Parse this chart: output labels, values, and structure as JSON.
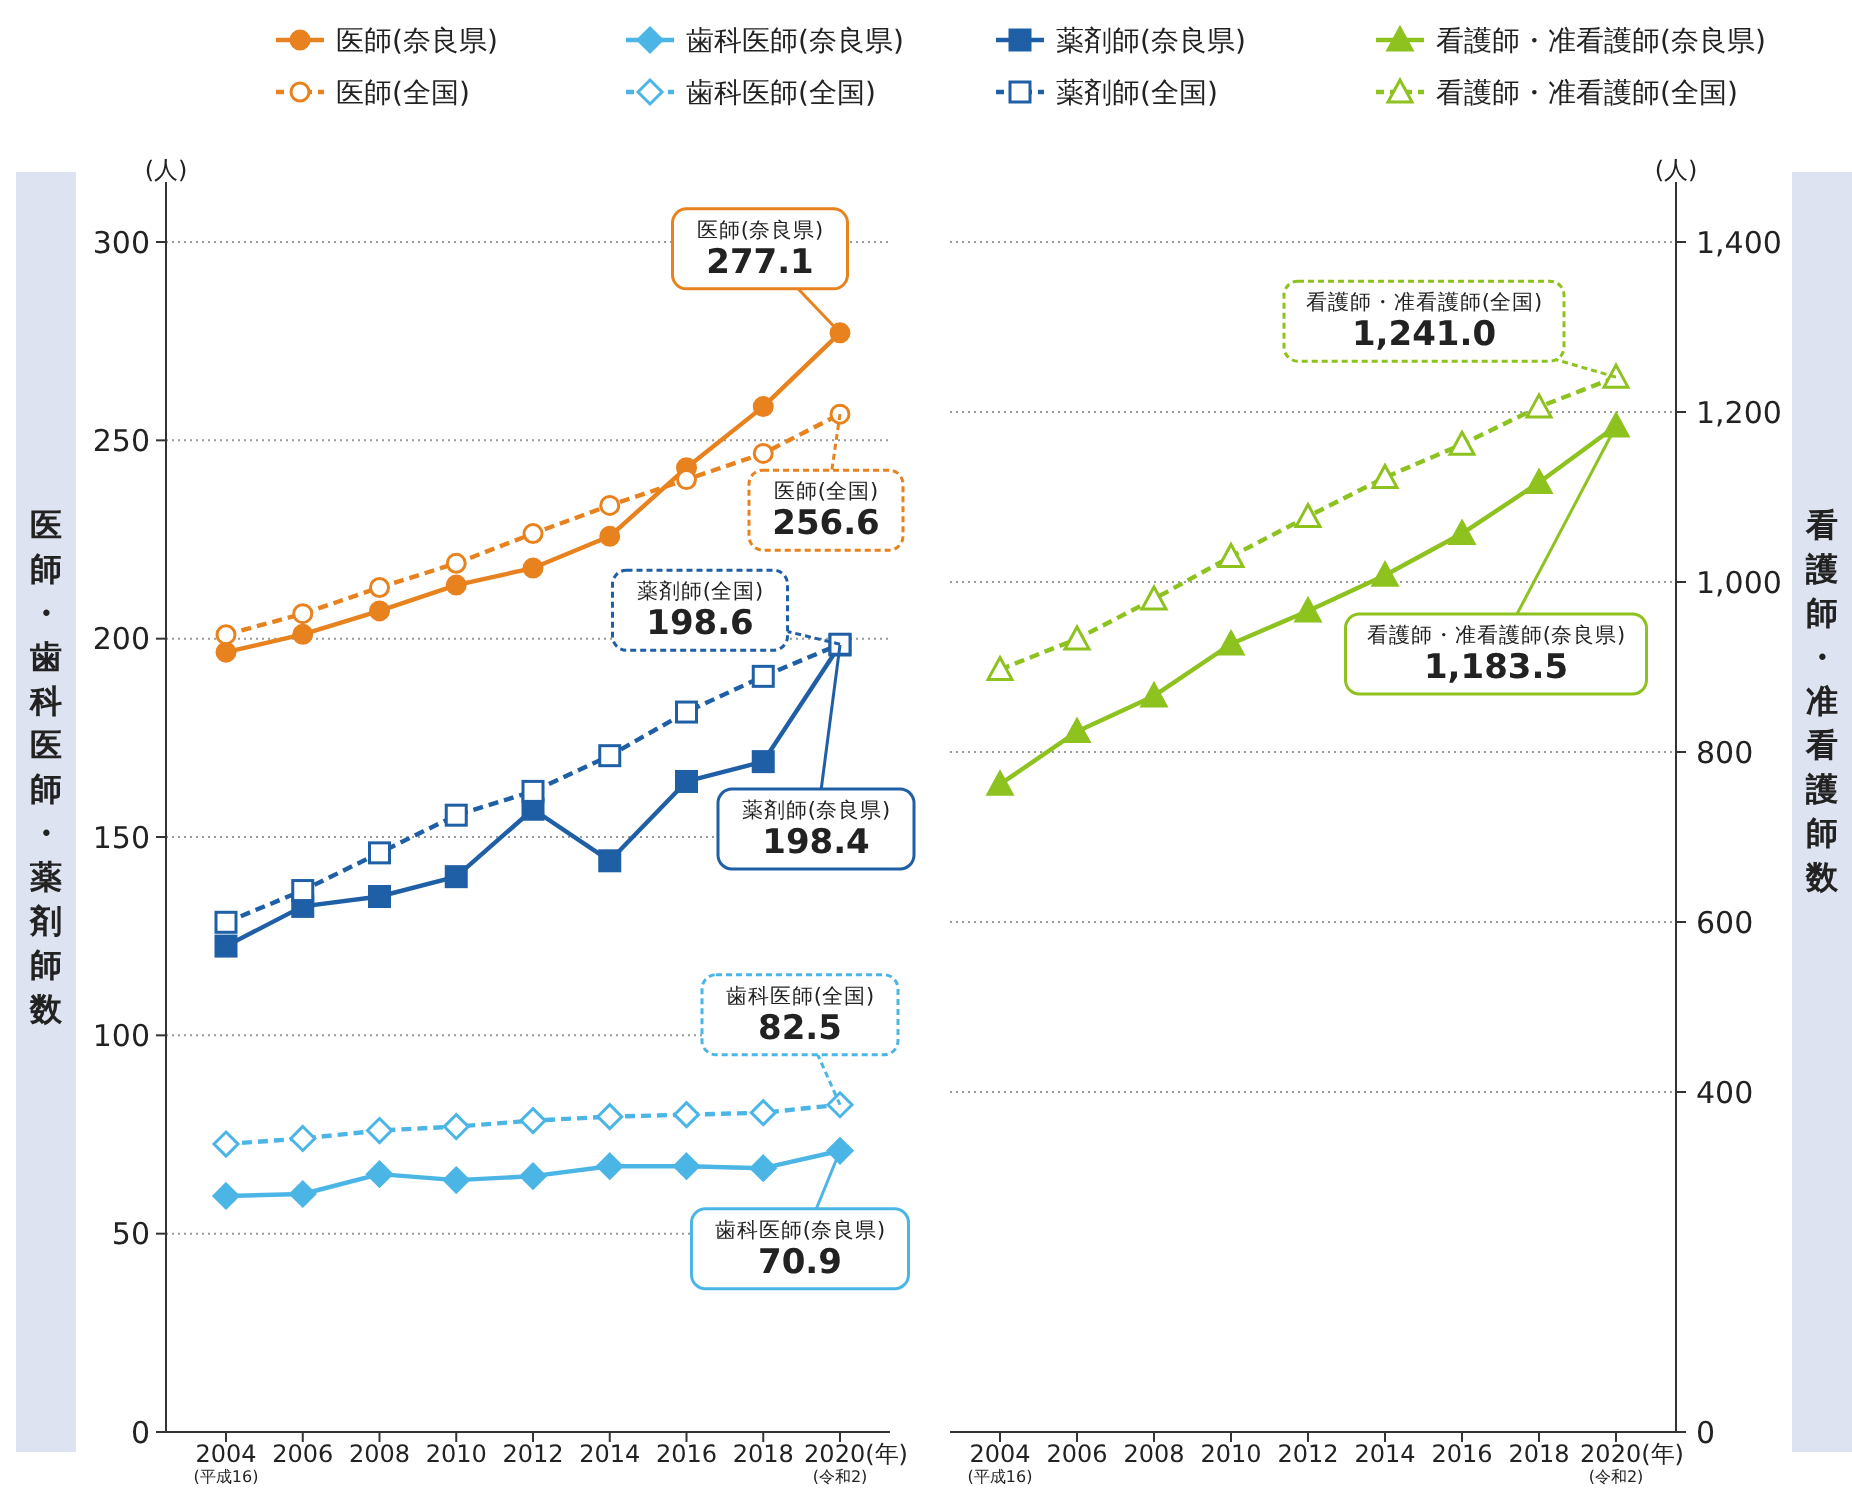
{
  "chart_data": [
    {
      "type": "line",
      "ylabel": "医師・歯科医師・薬剤師数",
      "categories": [
        "2004\n(平成16)",
        "2006",
        "2008",
        "2010",
        "2012",
        "2014",
        "2016",
        "2018",
        "2020(年)\n(令和2)"
      ],
      "ylim": [
        0,
        300
      ],
      "yticks": [
        0,
        50,
        100,
        150,
        200,
        250,
        300
      ],
      "grid": "y",
      "legend": "top",
      "series": [
        {
          "name": "医師(奈良県)",
          "color": "#e8821e",
          "marker": "circle",
          "line_style": "solid",
          "values": [
            196.6,
            201.1,
            207.0,
            213.5,
            217.8,
            225.8,
            243.1,
            258.5,
            277.1
          ]
        },
        {
          "name": "医師(全国)",
          "color": "#e8821e",
          "marker": "circle",
          "line_style": "dashed",
          "values": [
            201.0,
            206.3,
            212.9,
            219.0,
            226.5,
            233.6,
            240.1,
            246.7,
            256.6
          ]
        },
        {
          "name": "歯科医師(奈良県)",
          "color": "#4bb6e6",
          "marker": "diamond",
          "line_style": "solid",
          "values": [
            59.5,
            60.0,
            65.0,
            63.5,
            64.5,
            67.0,
            67.0,
            66.5,
            70.9
          ]
        },
        {
          "name": "歯科医師(全国)",
          "color": "#4bb6e6",
          "marker": "diamond",
          "line_style": "dashed",
          "values": [
            72.6,
            74.0,
            76.0,
            77.0,
            78.5,
            79.5,
            80.0,
            80.5,
            82.5
          ]
        },
        {
          "name": "薬剤師(奈良県)",
          "color": "#1f5fa6",
          "marker": "square",
          "line_style": "solid",
          "values": [
            122.5,
            132.5,
            135.0,
            140.0,
            157.0,
            144.0,
            164.0,
            169.0,
            198.4
          ]
        },
        {
          "name": "薬剤師(全国)",
          "color": "#1f5fa6",
          "marker": "square",
          "line_style": "dashed",
          "values": [
            128.5,
            136.5,
            146.0,
            155.5,
            161.5,
            170.5,
            181.5,
            190.5,
            198.6
          ]
        }
      ],
      "annotations": [
        "(人)",
        {
          "text": "医師(奈良県)\n277.1",
          "x": "2020(年)\n(令和2)",
          "y": 277.1
        },
        {
          "text": "医師(全国)\n256.6",
          "x": "2020(年)\n(令和2)",
          "y": 256.6
        },
        {
          "text": "薬剤師(全国)\n198.6",
          "x": "2020(年)\n(令和2)",
          "y": 198.6
        },
        {
          "text": "薬剤師(奈良県)\n198.4",
          "x": "2020(年)\n(令和2)",
          "y": 198.4
        },
        {
          "text": "歯科医師(全国)\n82.5",
          "x": "2020(年)\n(令和2)",
          "y": 82.5
        },
        {
          "text": "歯科医師(奈良県)\n70.9",
          "x": "2020(年)\n(令和2)",
          "y": 70.9
        }
      ]
    },
    {
      "type": "line",
      "ylabel": "看護師・准看護師数",
      "categories": [
        "2004\n(平成16)",
        "2006",
        "2008",
        "2010",
        "2012",
        "2014",
        "2016",
        "2018",
        "2020(年)\n(令和2)"
      ],
      "ylim": [
        0,
        1400
      ],
      "yticks": [
        {
          "value": 0,
          "label": "0"
        },
        400,
        600,
        800,
        {
          "value": 1000,
          "label": "1,000"
        },
        {
          "value": 1200,
          "label": "1,200"
        },
        {
          "value": 1400,
          "label": "1,400"
        }
      ],
      "grid": "y",
      "legend": "top",
      "series": [
        {
          "name": "看護師・准看護師(奈良県)",
          "color": "#8dc21f",
          "marker": "triangle",
          "line_style": "solid",
          "values": [
            762,
            824,
            866,
            927,
            966,
            1008,
            1057,
            1117,
            1183.5
          ]
        },
        {
          "name": "看護師・准看護師(全国)",
          "color": "#8dc21f",
          "marker": "triangle",
          "line_style": "dashed",
          "values": [
            897,
            933,
            980,
            1030,
            1077,
            1123,
            1162,
            1206,
            1241.0
          ]
        }
      ],
      "annotations": [
        "(人)",
        {
          "text": "看護師・准看護師(全国)\n1,241.0",
          "x": "2020(年)\n(令和2)",
          "y": 1241.0
        },
        {
          "text": "看護師・准看護師(奈良県)\n1,183.5",
          "x": "2020(年)\n(令和2)",
          "y": 1183.5
        }
      ]
    }
  ]
}
